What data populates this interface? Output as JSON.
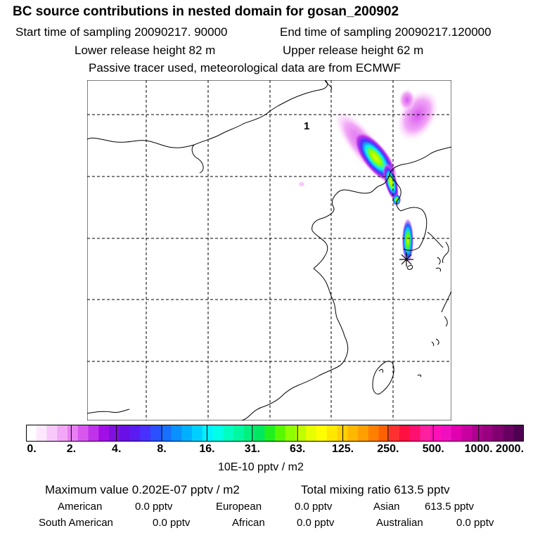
{
  "header": {
    "title": "BC  source contributions in nested domain for gosan_200902",
    "start_label": "Start time of sampling 20090217. 90000",
    "end_label": "End time of sampling 20090217.120000",
    "lower_release": "Lower release height   82 m",
    "upper_release": "Upper release height   62 m",
    "tracer_note": "Passive tracer used, meteorological data are from ECMWF"
  },
  "map": {
    "release_marker": "1",
    "receptor": "gosan",
    "colors": {
      "land_outline": "#000000",
      "grid": "#000000",
      "background": "#ffffff"
    }
  },
  "colorbar": {
    "tick_labels": [
      "0.",
      "2.",
      "4.",
      "8.",
      "16.",
      "31.",
      "63.",
      "125.",
      "250.",
      "500.",
      "1000.",
      "2000."
    ],
    "colors": [
      "#ffffff",
      "#fde8fd",
      "#f8c8fb",
      "#f2a8f7",
      "#e880f3",
      "#d858ef",
      "#c033ea",
      "#a010e6",
      "#8010e0",
      "#6a10e6",
      "#5a1cf0",
      "#4830ff",
      "#2a50ff",
      "#1870ff",
      "#0a90ff",
      "#00b0ff",
      "#00d0ff",
      "#00f0ff",
      "#00ffe6",
      "#00ffc0",
      "#00f8a0",
      "#00f080",
      "#00e860",
      "#20f020",
      "#58f800",
      "#90ff00",
      "#c0ff00",
      "#e8ff00",
      "#ffff00",
      "#ffe800",
      "#ffd000",
      "#ffb800",
      "#ffa000",
      "#ff8000",
      "#ff6000",
      "#ff3030",
      "#ff1040",
      "#ff1070",
      "#ff20a0",
      "#ff10b8",
      "#f010c0",
      "#e000b0",
      "#c800a0",
      "#b00090",
      "#980080",
      "#800070",
      "#680060",
      "#500050"
    ],
    "units": "10E-10 pptv / m2"
  },
  "stats": {
    "max_value": "Maximum value  0.202E-07 pptv / m2",
    "total_mixing": "Total mixing ratio      613.5 pptv",
    "regions": [
      {
        "label": "American",
        "value": "0.0 pptv"
      },
      {
        "label": "European",
        "value": "0.0 pptv"
      },
      {
        "label": "Asian",
        "value": "613.5 pptv"
      },
      {
        "label": "South American",
        "value": "0.0 pptv"
      },
      {
        "label": "African",
        "value": "0.0 pptv"
      },
      {
        "label": "Australian",
        "value": "0.0 pptv"
      }
    ]
  }
}
